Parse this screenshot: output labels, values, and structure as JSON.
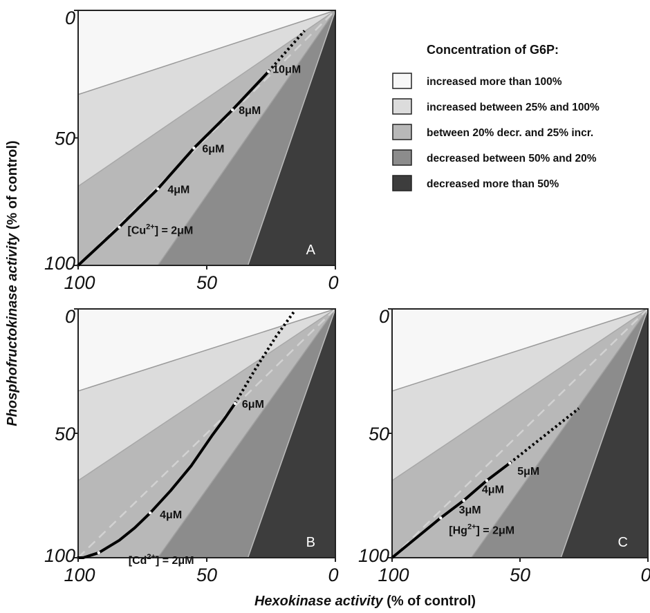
{
  "xlabel": {
    "italic": "Hexokinase activity",
    "rest": " (% of control)"
  },
  "ylabel": {
    "italic": "Phosphofructokinase activity",
    "rest": " (% of control)"
  },
  "legend": {
    "title": "Concentration of G6P:",
    "items": [
      {
        "label": "increased more than 100%",
        "color": "#f7f7f7"
      },
      {
        "label": "increased between 25% and 100%",
        "color": "#dcdcdc"
      },
      {
        "label": "between 20% decr. and 25% incr.",
        "color": "#b8b8b8"
      },
      {
        "label": "decreased between 50% and 20%",
        "color": "#8c8c8c"
      },
      {
        "label": "decreased more than 50%",
        "color": "#3d3d3d"
      }
    ]
  },
  "chart_data": [
    {
      "type": "line",
      "panel_label": "A",
      "x_ticks": [
        "100",
        "50",
        "0"
      ],
      "y_ticks": [
        "0",
        "50",
        "100"
      ],
      "xlim": [
        100,
        0
      ],
      "ylim": [
        0,
        100
      ],
      "series": [
        {
          "name": "[Cu²⁺]",
          "solid": [
            [
              100,
              100
            ],
            [
              84,
              85
            ],
            [
              69,
              70
            ],
            [
              55,
              54
            ],
            [
              40,
              39
            ],
            [
              26,
              24
            ]
          ],
          "dotted": [
            [
              26,
              24
            ],
            [
              12,
              8
            ]
          ],
          "points": [
            {
              "x": 84,
              "y": 85,
              "label": "[Cu²⁺] = 2μM",
              "parts": [
                "[Cu",
                "2+",
                "] = 2μM"
              ]
            },
            {
              "x": 69,
              "y": 70,
              "label": "4μM"
            },
            {
              "x": 55,
              "y": 54,
              "label": "6μM"
            },
            {
              "x": 40,
              "y": 39,
              "label": "8μM"
            },
            {
              "x": 26,
              "y": 24,
              "label": "10μM"
            }
          ]
        }
      ]
    },
    {
      "type": "line",
      "panel_label": "B",
      "x_ticks": [
        "100",
        "50",
        "0"
      ],
      "y_ticks": [
        "0",
        "50",
        "100"
      ],
      "xlim": [
        100,
        0
      ],
      "ylim": [
        0,
        100
      ],
      "series": [
        {
          "name": "[Cd²⁺]",
          "solid": [
            [
              100,
              100
            ],
            [
              98,
              100
            ],
            [
              92,
              98
            ],
            [
              84,
              93
            ],
            [
              78,
              88
            ],
            [
              72,
              82
            ],
            [
              64,
              73
            ],
            [
              56,
              63
            ],
            [
              48,
              51
            ],
            [
              43,
              44
            ],
            [
              39,
              38
            ]
          ],
          "dotted": [
            [
              39,
              38
            ],
            [
              31,
              24
            ],
            [
              23,
              11
            ],
            [
              16,
              1
            ]
          ],
          "points": [
            {
              "x": 92,
              "y": 98,
              "label": "[Cd²⁺] = 2μM",
              "parts": [
                "[Cd",
                "2+",
                "] = 2μM"
              ]
            },
            {
              "x": 72,
              "y": 82,
              "label": "4μM"
            },
            {
              "x": 39,
              "y": 38,
              "label": "6μM"
            }
          ]
        }
      ]
    },
    {
      "type": "line",
      "panel_label": "C",
      "x_ticks": [
        "100",
        "50",
        "0"
      ],
      "y_ticks": [
        "0",
        "50",
        "100"
      ],
      "xlim": [
        100,
        0
      ],
      "ylim": [
        0,
        100
      ],
      "series": [
        {
          "name": "[Hg²⁺]",
          "solid": [
            [
              100,
              100
            ],
            [
              81,
              84
            ],
            [
              72,
              77
            ],
            [
              63,
              69
            ],
            [
              54,
              62
            ]
          ],
          "dotted": [
            [
              54,
              62
            ],
            [
              27,
              40
            ]
          ],
          "points": [
            {
              "x": 81,
              "y": 84,
              "label": "[Hg²⁺] = 2μM",
              "parts": [
                "[Hg",
                "2+",
                "] = 2μM"
              ]
            },
            {
              "x": 72,
              "y": 77,
              "label": "3μM"
            },
            {
              "x": 63,
              "y": 69,
              "label": "4μM"
            },
            {
              "x": 54,
              "y": 62,
              "label": "5μM"
            }
          ]
        }
      ]
    }
  ]
}
